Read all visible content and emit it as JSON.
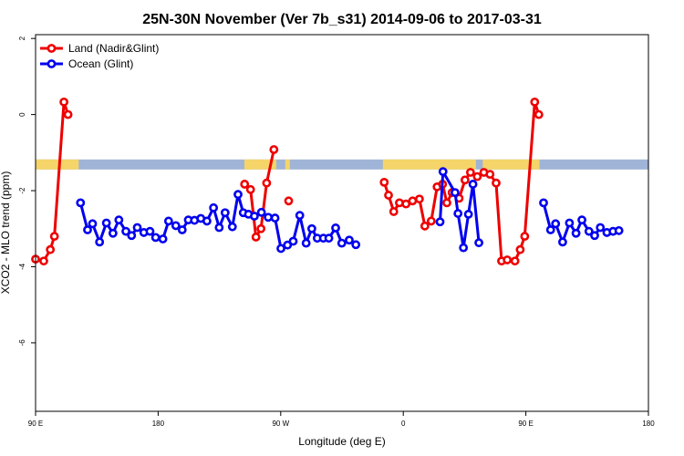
{
  "chart_data": {
    "type": "line",
    "title": "25N-30N November (Ver 7b_s31)   2014-09-06 to 2017-03-31",
    "xlabel": "Longitude (deg E)",
    "ylabel": "XCO2 - MLO trend (ppm)",
    "xlim": [
      -90,
      180
    ],
    "ylim": [
      -7.8,
      2.1
    ],
    "x_ticks": [
      {
        "value": -90,
        "label": "90 E"
      },
      {
        "value": -36,
        "label": "180"
      },
      {
        "value": 18,
        "label": "90 W"
      },
      {
        "value": 72,
        "label": "0"
      },
      {
        "value": 126,
        "label": "90 E"
      },
      {
        "value": 180,
        "label": "180"
      }
    ],
    "y_ticks": [
      {
        "value": 2,
        "label": "2"
      },
      {
        "value": 0,
        "label": "0"
      },
      {
        "value": -2,
        "label": "-2"
      },
      {
        "value": -4,
        "label": "-4"
      },
      {
        "value": -6,
        "label": "-6"
      }
    ],
    "legend": {
      "position": "top-left"
    },
    "series": [
      {
        "name": "Land (Nadir&Glint)",
        "color": "#ee0000",
        "segments": [
          [
            [
              -90,
              -3.8
            ],
            [
              -86.4,
              -3.85
            ],
            [
              -83.5,
              -3.55
            ],
            [
              -81.7,
              -3.2
            ],
            [
              -77.5,
              0.33
            ],
            [
              -75.7,
              0.0
            ]
          ],
          [
            [
              2.1,
              -1.83
            ],
            [
              4.7,
              -1.97
            ],
            [
              7.1,
              -3.22
            ],
            [
              9.3,
              -3.0
            ],
            [
              11.8,
              -1.8
            ],
            [
              15,
              -0.92
            ]
          ],
          [
            [
              21.5,
              -2.27
            ]
          ],
          [
            [
              63.6,
              -1.78
            ],
            [
              65.5,
              -2.12
            ],
            [
              67.8,
              -2.55
            ],
            [
              70.3,
              -2.32
            ],
            [
              73.2,
              -2.35
            ],
            [
              76.1,
              -2.27
            ],
            [
              79.1,
              -2.22
            ],
            [
              81.5,
              -2.93
            ],
            [
              84.3,
              -2.8
            ],
            [
              86.9,
              -1.9
            ],
            [
              89.3,
              -1.83
            ],
            [
              91.2,
              -2.32
            ],
            [
              93.5,
              -2.05
            ],
            [
              96.6,
              -2.2
            ],
            [
              99.2,
              -1.72
            ],
            [
              101.6,
              -1.52
            ],
            [
              104.6,
              -1.63
            ],
            [
              107.5,
              -1.52
            ],
            [
              110.2,
              -1.57
            ],
            [
              112.9,
              -1.8
            ],
            [
              115.3,
              -3.85
            ],
            [
              117.8,
              -3.82
            ],
            [
              121.2,
              -3.85
            ],
            [
              123.5,
              -3.55
            ],
            [
              125.5,
              -3.2
            ],
            [
              129.9,
              0.33
            ],
            [
              131.7,
              0.0
            ]
          ]
        ]
      },
      {
        "name": "Ocean (Glint)",
        "color": "#0000ee",
        "segments": [
          [
            [
              -70.2,
              -2.32
            ],
            [
              -67.1,
              -3.03
            ],
            [
              -64.9,
              -2.87
            ],
            [
              -61.8,
              -3.35
            ],
            [
              -58.8,
              -2.85
            ],
            [
              -55.9,
              -3.12
            ],
            [
              -53.3,
              -2.77
            ],
            [
              -50.2,
              -3.07
            ],
            [
              -47.7,
              -3.18
            ],
            [
              -45.2,
              -2.97
            ],
            [
              -42.3,
              -3.1
            ],
            [
              -39.6,
              -3.07
            ],
            [
              -37.1,
              -3.23
            ],
            [
              -33.9,
              -3.27
            ],
            [
              -31.4,
              -2.8
            ],
            [
              -28.2,
              -2.92
            ],
            [
              -25.4,
              -3.03
            ],
            [
              -22.7,
              -2.77
            ],
            [
              -20,
              -2.78
            ],
            [
              -17.2,
              -2.73
            ],
            [
              -14.5,
              -2.8
            ],
            [
              -11.6,
              -2.45
            ],
            [
              -9.1,
              -2.97
            ],
            [
              -6.5,
              -2.58
            ],
            [
              -3.3,
              -2.95
            ],
            [
              -0.8,
              -2.1
            ],
            [
              1.5,
              -2.58
            ],
            [
              3.8,
              -2.62
            ],
            [
              6.4,
              -2.67
            ],
            [
              9.5,
              -2.57
            ],
            [
              12.5,
              -2.7
            ],
            [
              15.5,
              -2.72
            ],
            [
              18.1,
              -3.52
            ],
            [
              21,
              -3.43
            ],
            [
              23.5,
              -3.33
            ],
            [
              26.4,
              -2.65
            ],
            [
              29.2,
              -3.38
            ],
            [
              31.7,
              -3.0
            ],
            [
              34.1,
              -3.25
            ],
            [
              36.8,
              -3.25
            ],
            [
              39.2,
              -3.25
            ],
            [
              42.2,
              -2.98
            ],
            [
              44.9,
              -3.38
            ],
            [
              48.2,
              -3.3
            ],
            [
              51.1,
              -3.42
            ]
          ],
          [
            [
              88.2,
              -2.82
            ],
            [
              89.5,
              -1.5
            ],
            [
              94.8,
              -2.05
            ],
            [
              96.1,
              -2.6
            ],
            [
              98.5,
              -3.5
            ],
            [
              100.7,
              -2.62
            ],
            [
              102.7,
              -1.83
            ],
            [
              105.3,
              -3.37
            ]
          ],
          [
            [
              133.8,
              -2.32
            ],
            [
              136.9,
              -3.03
            ],
            [
              139.1,
              -2.87
            ],
            [
              142.2,
              -3.35
            ],
            [
              145.2,
              -2.85
            ],
            [
              148.1,
              -3.12
            ],
            [
              150.7,
              -2.77
            ],
            [
              153.8,
              -3.07
            ],
            [
              156.3,
              -3.18
            ],
            [
              158.8,
              -2.97
            ],
            [
              161.7,
              -3.1
            ],
            [
              164.4,
              -3.07
            ],
            [
              167,
              -3.05
            ]
          ]
        ]
      }
    ],
    "band": {
      "y": -1.3,
      "colors": {
        "land": "#f5d56a",
        "ocean": "#9fb4d6"
      },
      "land_ranges": [
        [
          -90,
          -71
        ],
        [
          2,
          16
        ],
        [
          20,
          22
        ],
        [
          63,
          104
        ],
        [
          107,
          132
        ]
      ]
    }
  }
}
